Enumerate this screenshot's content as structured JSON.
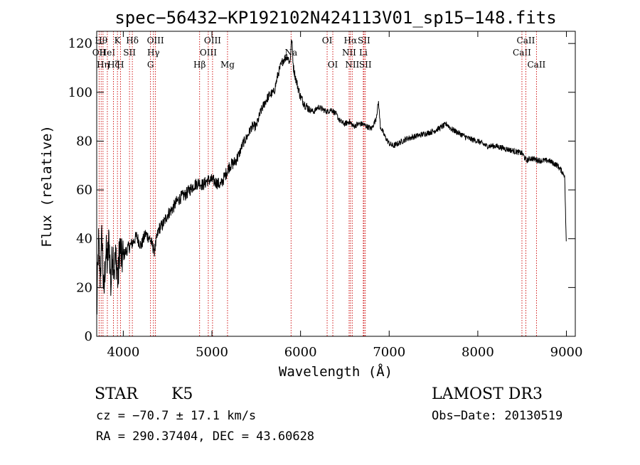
{
  "chart_data": {
    "type": "line",
    "title": "spec−56432−KP192102N424113V01_sp15−148.fits",
    "xlabel": "Wavelength (Å)",
    "ylabel": "Flux (relative)",
    "xlim": [
      3700,
      9100
    ],
    "ylim": [
      0,
      125
    ],
    "xticks": [
      4000,
      5000,
      6000,
      7000,
      8000,
      9000
    ],
    "xtick_labels": [
      "4000",
      "5000",
      "6000",
      "7000",
      "8000",
      "9000"
    ],
    "yticks": [
      0,
      20,
      40,
      60,
      80,
      100,
      120
    ],
    "ytick_labels": [
      "0",
      "20",
      "40",
      "60",
      "80",
      "100",
      "120"
    ],
    "grid": false,
    "legend": "none",
    "line_color": "#000000",
    "marker_color": "#cc0000",
    "series": [
      {
        "x": [
          3700,
          3720,
          3740,
          3760,
          3780,
          3800,
          3820,
          3840,
          3860,
          3880,
          3900,
          3920,
          3940,
          3960,
          3980,
          4000,
          4050,
          4100,
          4150,
          4200,
          4250,
          4300,
          4350,
          4400,
          4450,
          4500,
          4550,
          4600,
          4650,
          4700,
          4750,
          4800,
          4850,
          4900,
          4950,
          5000,
          5050,
          5100,
          5150,
          5200,
          5250,
          5300,
          5350,
          5400,
          5450,
          5500,
          5550,
          5600,
          5650,
          5700,
          5750,
          5800,
          5850,
          5880,
          5900,
          5920,
          5950,
          6000,
          6050,
          6100,
          6150,
          6200,
          6250,
          6300,
          6350,
          6400,
          6450,
          6500,
          6550,
          6600,
          6650,
          6700,
          6750,
          6800,
          6850,
          6880,
          6900,
          6950,
          7000,
          7050,
          7100,
          7200,
          7300,
          7400,
          7500,
          7600,
          7650,
          7700,
          7800,
          7900,
          8000,
          8100,
          8200,
          8300,
          8400,
          8500,
          8550,
          8600,
          8700,
          8800,
          8900,
          8980,
          9000
        ],
        "y": [
          8,
          38,
          25,
          42,
          15,
          35,
          30,
          40,
          20,
          36,
          28,
          33,
          22,
          38,
          31,
          33,
          36,
          38,
          41,
          37,
          42,
          40,
          35,
          44,
          46,
          50,
          52,
          55,
          57,
          58,
          60,
          62,
          63,
          62,
          64,
          64,
          63,
          62,
          66,
          70,
          71,
          74,
          79,
          82,
          86,
          86,
          92,
          96,
          99,
          100,
          108,
          113,
          115,
          112,
          122,
          110,
          105,
          98,
          95,
          93,
          92,
          94,
          93,
          92,
          93,
          91,
          88,
          87,
          88,
          86,
          87,
          87,
          86,
          85,
          89,
          96,
          86,
          82,
          79,
          78,
          79,
          81,
          82,
          83,
          84,
          86,
          87,
          85,
          83,
          81,
          80,
          78,
          78,
          77,
          76,
          75,
          72,
          73,
          72,
          72,
          70,
          66,
          35
        ],
        "color": "#000000"
      }
    ],
    "line_markers": [
      {
        "x": 3727,
        "label": "OII",
        "row": 2
      },
      {
        "x": 3750,
        "label": "Hθ",
        "row": 1
      },
      {
        "x": 3771,
        "label": "Hη",
        "row": 3
      },
      {
        "x": 3820,
        "label": "HeI",
        "row": 2
      },
      {
        "x": 3889,
        "label": "Hζ",
        "row": 3
      },
      {
        "x": 3934,
        "label": "K",
        "row": 1
      },
      {
        "x": 3968,
        "label": "H",
        "row": 3
      },
      {
        "x": 4070,
        "label": "SII",
        "row": 2
      },
      {
        "x": 4102,
        "label": "Hδ",
        "row": 1
      },
      {
        "x": 4307,
        "label": "G",
        "row": 3
      },
      {
        "x": 4340,
        "label": "Hγ",
        "row": 2
      },
      {
        "x": 4363,
        "label": "OIII",
        "row": 1
      },
      {
        "x": 4861,
        "label": "Hβ",
        "row": 3
      },
      {
        "x": 4959,
        "label": "OIII",
        "row": 2
      },
      {
        "x": 5007,
        "label": "OIII",
        "row": 1
      },
      {
        "x": 5176,
        "label": "Mg",
        "row": 3
      },
      {
        "x": 5893,
        "label": "Na",
        "row": 2
      },
      {
        "x": 6300,
        "label": "OI",
        "row": 1
      },
      {
        "x": 6364,
        "label": "OI",
        "row": 3
      },
      {
        "x": 6548,
        "label": "NII",
        "row": 2
      },
      {
        "x": 6563,
        "label": "Hα",
        "row": 1
      },
      {
        "x": 6583,
        "label": "NII",
        "row": 3
      },
      {
        "x": 6708,
        "label": "Li",
        "row": 2
      },
      {
        "x": 6716,
        "label": "SII",
        "row": 1
      },
      {
        "x": 6731,
        "label": "SII",
        "row": 3
      },
      {
        "x": 8498,
        "label": "CaII",
        "row": 2
      },
      {
        "x": 8542,
        "label": "CaII",
        "row": 1
      },
      {
        "x": 8662,
        "label": "CaII",
        "row": 3
      }
    ]
  },
  "info": {
    "class": "STAR",
    "subclass": "K5",
    "survey": "LAMOST DR3",
    "cz": "cz = −70.7 ± 17.1 km/s",
    "obs_date": "Obs−Date: 20130519",
    "radec": "RA = 290.37404, DEC =  43.60628"
  }
}
